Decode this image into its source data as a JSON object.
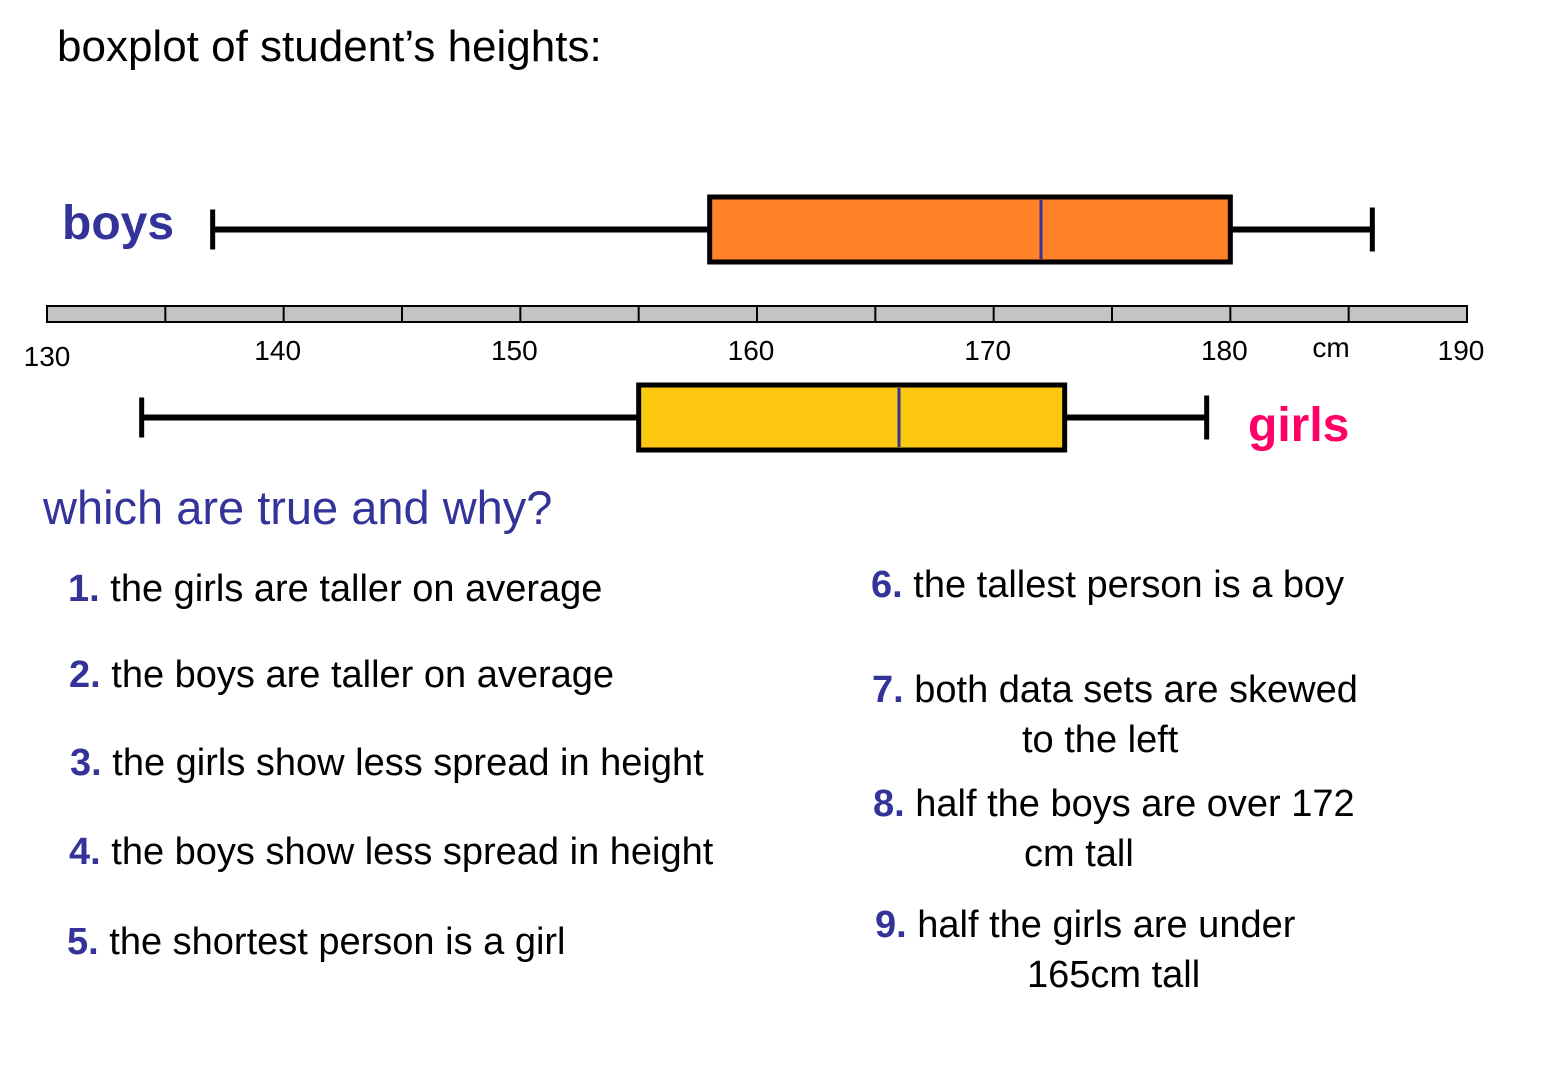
{
  "title": "boxplot of student’s heights:",
  "question": "which are true and why?",
  "chart_data": {
    "type": "boxplot",
    "orientation": "horizontal",
    "xlim": [
      130,
      190
    ],
    "x_ticks": [
      130,
      140,
      150,
      160,
      170,
      180,
      190
    ],
    "minor_tick_step": 5,
    "unit_label": "cm",
    "series": [
      {
        "name": "boys",
        "min": 137,
        "q1": 158,
        "median": 172,
        "q3": 180,
        "max": 186,
        "fill": "#ff8228",
        "label_color": "#333399"
      },
      {
        "name": "girls",
        "min": 134,
        "q1": 155,
        "median": 166,
        "q3": 173,
        "max": 179,
        "fill": "#fdc910",
        "label_color": "#ff0066"
      }
    ],
    "median_color": "#333399",
    "axis_fill": "#c4c4c4"
  },
  "statements": [
    {
      "num": "1.",
      "text": "the girls are taller on average"
    },
    {
      "num": "2.",
      "text": "the boys are taller on average"
    },
    {
      "num": "3.",
      "text": "the girls show less spread in height"
    },
    {
      "num": "4.",
      "text": "the boys show less spread in height"
    },
    {
      "num": "5.",
      "text": "the shortest person is a girl"
    },
    {
      "num": "6.",
      "text": "the tallest person is a boy"
    },
    {
      "num": "7.",
      "text": "both data sets are skewed",
      "cont": "to the left"
    },
    {
      "num": "8.",
      "text": "half the boys are over 172",
      "cont": "cm tall"
    },
    {
      "num": "9.",
      "text": "half the girls are under",
      "cont": "165cm tall"
    }
  ]
}
